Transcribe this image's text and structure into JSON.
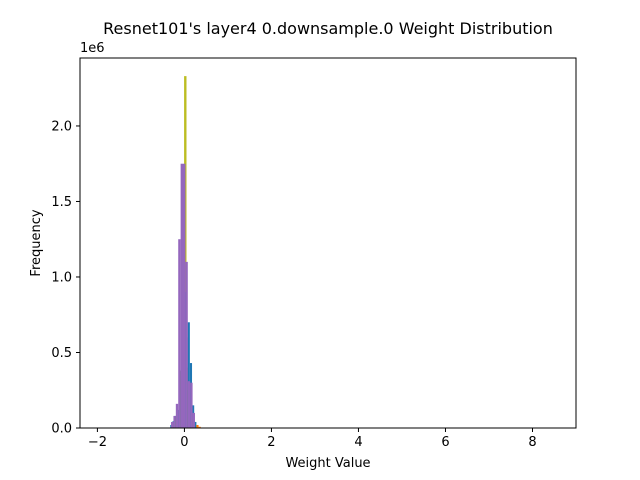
{
  "chart_data": {
    "type": "bar",
    "title": "Resnet101's layer4 0.downsample.0 Weight Distribution",
    "xlabel": "Weight Value",
    "ylabel": "Frequency",
    "y_multiplier_label": "1e6",
    "xlim": [
      -2.4,
      9.0
    ],
    "ylim": [
      0,
      2450000
    ],
    "x_ticks": [
      -2,
      0,
      2,
      4,
      6,
      8
    ],
    "x_tick_labels": [
      "−2",
      "0",
      "2",
      "4",
      "6",
      "8"
    ],
    "y_ticks": [
      0,
      500000,
      1000000,
      1500000,
      2000000
    ],
    "y_tick_labels": [
      "0.0",
      "0.5",
      "1.0",
      "1.5",
      "2.0"
    ],
    "grid": false,
    "legend": "none",
    "series": [
      {
        "color": "#bcbd22",
        "bin_width": 0.055,
        "bins": [
          {
            "x": -0.2,
            "y": 30000
          },
          {
            "x": -0.145,
            "y": 80000
          },
          {
            "x": -0.09,
            "y": 150000
          },
          {
            "x": -0.035,
            "y": 400000
          },
          {
            "x": 0.02,
            "y": 2330000
          },
          {
            "x": 0.075,
            "y": 400000
          },
          {
            "x": 0.13,
            "y": 300000
          },
          {
            "x": 0.185,
            "y": 120000
          },
          {
            "x": 0.24,
            "y": 40000
          },
          {
            "x": 0.295,
            "y": 10000
          }
        ]
      },
      {
        "color": "#1f77b4",
        "bin_width": 0.05,
        "bins": [
          {
            "x": -0.3,
            "y": 20000
          },
          {
            "x": -0.25,
            "y": 45000
          },
          {
            "x": -0.2,
            "y": 80000
          },
          {
            "x": -0.15,
            "y": 120000
          },
          {
            "x": -0.1,
            "y": 200000
          },
          {
            "x": -0.05,
            "y": 500000
          },
          {
            "x": 0.0,
            "y": 900000
          },
          {
            "x": 0.05,
            "y": 600000
          },
          {
            "x": 0.1,
            "y": 700000
          },
          {
            "x": 0.15,
            "y": 430000
          },
          {
            "x": 0.2,
            "y": 150000
          },
          {
            "x": 0.25,
            "y": 40000
          }
        ]
      },
      {
        "color": "#2ca02c",
        "bin_width": 0.05,
        "bins": [
          {
            "x": -0.25,
            "y": 30000
          },
          {
            "x": -0.2,
            "y": 70000
          },
          {
            "x": -0.1,
            "y": 380000
          },
          {
            "x": 0.1,
            "y": 250000
          },
          {
            "x": 0.2,
            "y": 60000
          }
        ]
      },
      {
        "color": "#ff7f0e",
        "bin_width": 0.05,
        "bins": [
          {
            "x": 0.3,
            "y": 20000
          },
          {
            "x": 0.35,
            "y": 8000
          }
        ]
      },
      {
        "color": "#9467bd",
        "bin_width": 0.055,
        "bins": [
          {
            "x": -0.28,
            "y": 40000
          },
          {
            "x": -0.225,
            "y": 80000
          },
          {
            "x": -0.17,
            "y": 160000
          },
          {
            "x": -0.115,
            "y": 1250000
          },
          {
            "x": -0.06,
            "y": 1750000
          },
          {
            "x": -0.005,
            "y": 1750000
          },
          {
            "x": 0.05,
            "y": 1100000
          },
          {
            "x": 0.105,
            "y": 310000
          },
          {
            "x": 0.16,
            "y": 300000
          },
          {
            "x": 0.215,
            "y": 100000
          }
        ]
      }
    ]
  }
}
